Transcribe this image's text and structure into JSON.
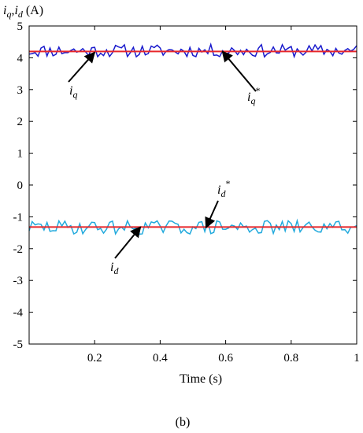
{
  "chart_data": {
    "type": "line",
    "ylabel": {
      "i1": "i",
      "s1": "q",
      "sep": ",",
      "i2": "i",
      "s2": "d",
      "unit": " (A)"
    },
    "xlabel": "Time (s)",
    "xlim": [
      0,
      1
    ],
    "ylim": [
      -5,
      5
    ],
    "x_ticks": [
      0.2,
      0.4,
      0.6,
      0.8,
      1
    ],
    "x_tick_labels": [
      "0.2",
      "0.4",
      "0.6",
      "0.8",
      "1"
    ],
    "y_ticks": [
      5,
      4,
      3,
      2,
      1,
      0,
      -1,
      -2,
      -3,
      -4,
      -5
    ],
    "y_tick_labels": [
      "5",
      "4",
      "3",
      "2",
      "1",
      "0",
      "-1",
      "-2",
      "-3",
      "-4",
      "-5"
    ],
    "grid": false,
    "colors": {
      "iq": "#1a1acc",
      "id": "#22aadd",
      "reference": "#e8262a",
      "arrow": "#000000"
    },
    "series": [
      {
        "key": "iq",
        "mean": 4.22,
        "amplitude": 0.2,
        "seed": 11
      },
      {
        "key": "id",
        "mean": -1.33,
        "amplitude": 0.22,
        "seed": 29
      },
      {
        "key": "iq_ref",
        "value": 4.2
      },
      {
        "key": "id_ref",
        "value": -1.32
      }
    ],
    "annotations": [
      {
        "key": "iq",
        "base": "i",
        "sub": "q",
        "sup": "",
        "arrow_to": [
          0.2,
          4.17
        ]
      },
      {
        "key": "iq_ref",
        "base": "i",
        "sub": "q",
        "sup": "*",
        "arrow_to": [
          0.59,
          4.2
        ]
      },
      {
        "key": "id",
        "base": "i",
        "sub": "d",
        "sup": "",
        "arrow_to": [
          0.34,
          -1.32
        ]
      },
      {
        "key": "id_ref",
        "base": "i",
        "sub": "d",
        "sup": "*",
        "arrow_to": [
          0.54,
          -1.34
        ]
      }
    ]
  },
  "caption": "(b)"
}
